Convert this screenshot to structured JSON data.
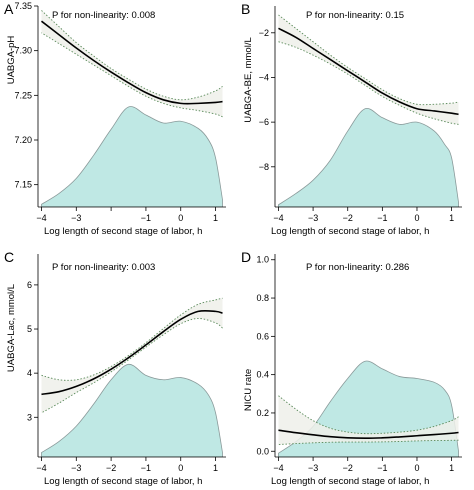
{
  "figure": {
    "colors": {
      "density_fill": "#bfe8e4",
      "density_stroke": "#8a9a9a",
      "ci_fill": "#eef0ea",
      "ci_stroke": "#5a8a5a",
      "curve": "#000000",
      "axis": "#000000"
    }
  },
  "chart_data": [
    {
      "type": "line",
      "panel_label": "A",
      "annotation": "P for non-linearity: 0.008",
      "xlabel": "Log length of second stage of labor, h",
      "ylabel": "UABGA-pH",
      "xlim": [
        -4.1,
        1.3
      ],
      "ylim": [
        7.125,
        7.35
      ],
      "xticks": [
        -4,
        -3,
        -2,
        -1,
        0,
        1
      ],
      "xtick_labels": [
        "−4",
        "−3",
        "",
        "−1",
        "0",
        "1"
      ],
      "yticks": [
        7.15,
        7.2,
        7.25,
        7.3,
        7.35
      ],
      "ytick_labels": [
        "7.15",
        "7.20",
        "7.25",
        "7.30",
        "7.35"
      ],
      "series": [
        {
          "x": [
            -4.0,
            -3.5,
            -3.0,
            -2.5,
            -2.0,
            -1.5,
            -1.0,
            -0.5,
            0.0,
            0.5,
            1.0,
            1.2
          ],
          "y": [
            7.333,
            7.318,
            7.303,
            7.289,
            7.276,
            7.264,
            7.253,
            7.245,
            7.241,
            7.241,
            7.242,
            7.243
          ]
        }
      ],
      "ci_upper": [
        7.345,
        7.327,
        7.309,
        7.294,
        7.28,
        7.268,
        7.257,
        7.249,
        7.245,
        7.248,
        7.255,
        7.26
      ],
      "ci_lower": [
        7.32,
        7.308,
        7.296,
        7.284,
        7.272,
        7.26,
        7.249,
        7.241,
        7.236,
        7.233,
        7.229,
        7.226
      ],
      "density": {
        "x": [
          -4.0,
          -3.5,
          -3.0,
          -2.5,
          -2.0,
          -1.5,
          -1.0,
          -0.5,
          0.0,
          0.5,
          0.8,
          1.0,
          1.2
        ],
        "y": [
          7.128,
          7.14,
          7.157,
          7.183,
          7.212,
          7.237,
          7.228,
          7.219,
          7.221,
          7.213,
          7.2,
          7.18,
          7.133
        ]
      }
    },
    {
      "type": "line",
      "panel_label": "B",
      "annotation": "P for non-linearity: 0.15",
      "xlabel": "Log length of second stage of labor, h",
      "ylabel": "UABGA-BE, mmol/L",
      "xlim": [
        -4.1,
        1.3
      ],
      "ylim": [
        -9.8,
        -0.8
      ],
      "xticks": [
        -4,
        -3,
        -2,
        -1,
        0,
        1
      ],
      "xtick_labels": [
        "−4",
        "−3",
        "−2",
        "−1",
        "0",
        "1"
      ],
      "yticks": [
        -8,
        -6,
        -4,
        -2
      ],
      "ytick_labels": [
        "−8",
        "−6",
        "−4",
        "−2"
      ],
      "series": [
        {
          "x": [
            -4.0,
            -3.5,
            -3.0,
            -2.5,
            -2.0,
            -1.5,
            -1.0,
            -0.5,
            0.0,
            0.5,
            1.0,
            1.2
          ],
          "y": [
            -1.8,
            -2.2,
            -2.7,
            -3.2,
            -3.7,
            -4.2,
            -4.7,
            -5.1,
            -5.4,
            -5.5,
            -5.6,
            -5.65
          ]
        }
      ],
      "ci_upper": [
        -1.2,
        -1.8,
        -2.4,
        -3.0,
        -3.55,
        -4.05,
        -4.55,
        -4.95,
        -5.2,
        -5.2,
        -5.15,
        -5.1
      ],
      "ci_lower": [
        -2.4,
        -2.65,
        -3.0,
        -3.4,
        -3.85,
        -4.35,
        -4.85,
        -5.25,
        -5.6,
        -5.85,
        -6.05,
        -6.1
      ],
      "density": {
        "x": [
          -4.0,
          -3.5,
          -3.0,
          -2.5,
          -2.0,
          -1.5,
          -1.0,
          -0.5,
          0.0,
          0.5,
          0.8,
          1.0,
          1.2
        ],
        "y": [
          -9.7,
          -9.2,
          -8.6,
          -7.7,
          -6.4,
          -5.4,
          -5.8,
          -6.1,
          -6.0,
          -6.4,
          -7.0,
          -7.6,
          -9.6
        ]
      }
    },
    {
      "type": "line",
      "panel_label": "C",
      "annotation": "P for non-linearity: 0.003",
      "xlabel": "Log length of second stage of labor, h",
      "ylabel": "UABGA-Lac, mmol/L",
      "xlim": [
        -4.1,
        1.3
      ],
      "ylim": [
        2.1,
        6.7
      ],
      "xticks": [
        -4,
        -3,
        -2,
        -1,
        0,
        1
      ],
      "xtick_labels": [
        "−4",
        "−3",
        "−2",
        "−1",
        "0",
        "1"
      ],
      "yticks": [
        3,
        4,
        5,
        6
      ],
      "ytick_labels": [
        "3",
        "4",
        "5",
        "6"
      ],
      "series": [
        {
          "x": [
            -4.0,
            -3.5,
            -3.0,
            -2.5,
            -2.0,
            -1.5,
            -1.0,
            -0.5,
            0.0,
            0.5,
            1.0,
            1.2
          ],
          "y": [
            3.52,
            3.58,
            3.7,
            3.87,
            4.09,
            4.35,
            4.64,
            4.94,
            5.22,
            5.4,
            5.4,
            5.36
          ]
        }
      ],
      "ci_upper": [
        3.95,
        3.85,
        3.85,
        3.96,
        4.15,
        4.4,
        4.69,
        5.01,
        5.32,
        5.56,
        5.66,
        5.7
      ],
      "ci_lower": [
        3.1,
        3.32,
        3.56,
        3.78,
        4.03,
        4.3,
        4.59,
        4.87,
        5.12,
        5.24,
        5.14,
        5.02
      ],
      "density": {
        "x": [
          -4.0,
          -3.5,
          -3.0,
          -2.5,
          -2.0,
          -1.5,
          -1.0,
          -0.5,
          0.0,
          0.5,
          0.8,
          1.0,
          1.2
        ],
        "y": [
          2.2,
          2.45,
          2.8,
          3.3,
          3.85,
          4.2,
          3.95,
          3.85,
          3.9,
          3.75,
          3.5,
          3.1,
          2.2
        ]
      }
    },
    {
      "type": "line",
      "panel_label": "D",
      "annotation": "P for non-linearity: 0.286",
      "xlabel": "Log length of second stage of labor, h",
      "ylabel": "NICU rate",
      "xlim": [
        -4.1,
        1.3
      ],
      "ylim": [
        -0.03,
        1.03
      ],
      "xticks": [
        -4,
        -3,
        -2,
        -1,
        0,
        1
      ],
      "xtick_labels": [
        "−4",
        "−3",
        "−2",
        "−1",
        "0",
        "1"
      ],
      "yticks": [
        0.0,
        0.2,
        0.4,
        0.6,
        0.8,
        1.0
      ],
      "ytick_labels": [
        "0.0",
        "0.2",
        "0.4",
        "0.6",
        "0.8",
        "1.0"
      ],
      "series": [
        {
          "x": [
            -4.0,
            -3.5,
            -3.0,
            -2.5,
            -2.0,
            -1.5,
            -1.0,
            -0.5,
            0.0,
            0.5,
            1.0,
            1.2
          ],
          "y": [
            0.11,
            0.097,
            0.086,
            0.076,
            0.07,
            0.068,
            0.07,
            0.075,
            0.081,
            0.087,
            0.094,
            0.098
          ]
        }
      ],
      "ci_upper": [
        0.29,
        0.22,
        0.16,
        0.12,
        0.1,
        0.092,
        0.094,
        0.1,
        0.11,
        0.13,
        0.16,
        0.18
      ],
      "ci_lower": [
        0.035,
        0.04,
        0.044,
        0.047,
        0.048,
        0.048,
        0.049,
        0.051,
        0.054,
        0.056,
        0.057,
        0.058
      ],
      "density": {
        "x": [
          -4.0,
          -3.5,
          -3.0,
          -2.5,
          -2.0,
          -1.5,
          -1.0,
          -0.5,
          0.0,
          0.5,
          0.8,
          1.0,
          1.2
        ],
        "y": [
          -0.01,
          0.05,
          0.13,
          0.26,
          0.38,
          0.47,
          0.43,
          0.39,
          0.38,
          0.36,
          0.32,
          0.24,
          0.0
        ]
      }
    }
  ]
}
